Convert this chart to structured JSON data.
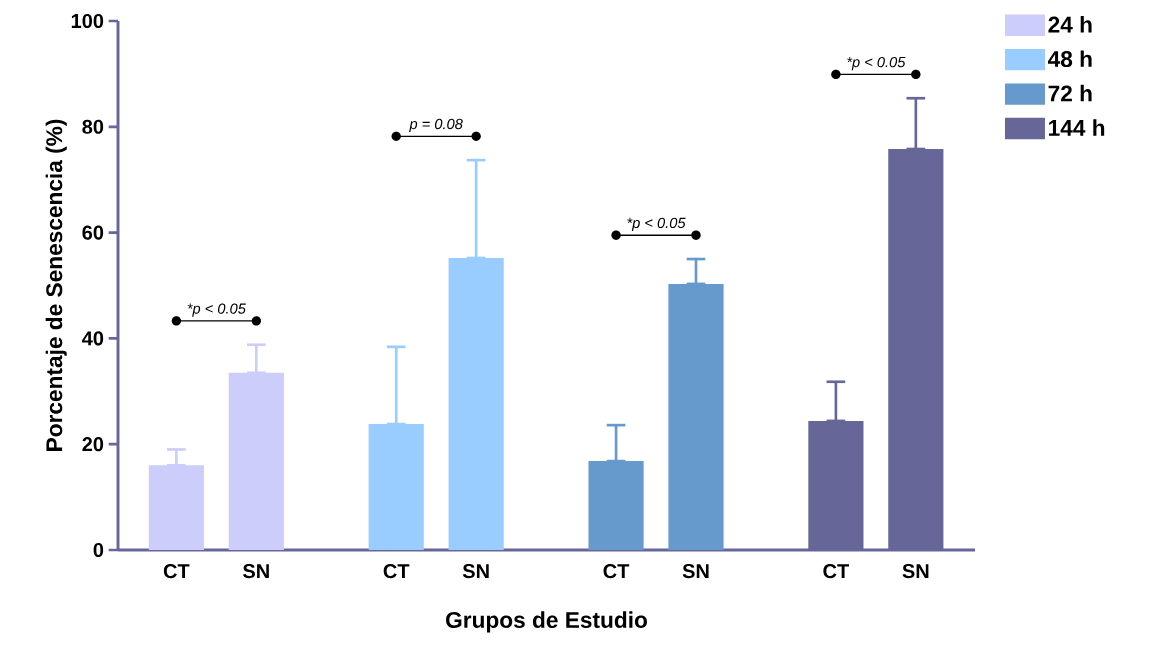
{
  "chart_data": {
    "type": "bar",
    "xlabel": "Grupos de Estudio",
    "ylabel": "Porcentaje de Senescencia  (%)",
    "categories": [
      "CT",
      "SN",
      "CT",
      "SN",
      "CT",
      "SN",
      "CT",
      "SN"
    ],
    "series": [
      {
        "name": "24 h",
        "color": "#cccdfa",
        "values": [
          16,
          33.5,
          null,
          null,
          null,
          null,
          null,
          null
        ],
        "errors": [
          [
            16,
            19
          ],
          [
            33.5,
            38.8
          ],
          null,
          null,
          null,
          null,
          null,
          null
        ]
      },
      {
        "name": "48 h",
        "color": "#99ccff",
        "values": [
          null,
          null,
          23.8,
          55.2,
          null,
          null,
          null,
          null
        ],
        "errors": [
          null,
          null,
          [
            23.8,
            38.4
          ],
          [
            55.2,
            73.7
          ],
          null,
          null,
          null,
          null
        ]
      },
      {
        "name": "72 h",
        "color": "#6699cc",
        "values": [
          null,
          null,
          null,
          null,
          16.8,
          50.3,
          null,
          null
        ],
        "errors": [
          null,
          null,
          null,
          null,
          [
            16.8,
            23.6
          ],
          [
            50.3,
            55
          ],
          null,
          null
        ]
      },
      {
        "name": "144 h",
        "color": "#666699",
        "values": [
          null,
          null,
          null,
          null,
          null,
          null,
          24.4,
          75.8
        ],
        "errors": [
          null,
          null,
          null,
          null,
          null,
          null,
          [
            24.4,
            31.8
          ],
          [
            75.8,
            85.4
          ]
        ]
      }
    ],
    "annotations": [
      "*p < 0.05",
      "p = 0.08",
      "*p < 0.05",
      "*p < 0.05"
    ],
    "ylim": [
      0,
      100
    ],
    "yticks": [
      0,
      20,
      40,
      60,
      80,
      100
    ],
    "grid": false,
    "legend": "top right"
  }
}
